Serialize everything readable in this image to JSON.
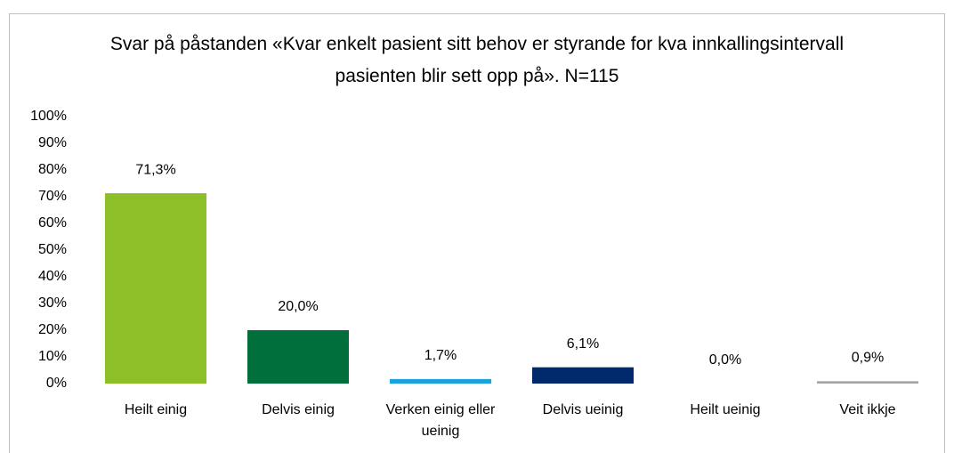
{
  "chart_data": {
    "type": "bar",
    "title": "Svar på påstanden «Kvar enkelt pasient sitt behov er styrande for kva innkallingsintervall pasienten blir sett opp på». N=115",
    "categories": [
      "Heilt einig",
      "Delvis einig",
      "Verken einig eller ueinig",
      "Delvis ueinig",
      "Heilt ueinig",
      "Veit ikkje"
    ],
    "values": [
      71.3,
      20.0,
      1.7,
      6.1,
      0.0,
      0.9
    ],
    "value_labels": [
      "71,3%",
      "20,0%",
      "1,7%",
      "6,1%",
      "0,0%",
      "0,9%"
    ],
    "colors": [
      "#8dc028",
      "#006f3c",
      "#1aa3dc",
      "#002a6c",
      "#7f7f7f",
      "#a6a6a6"
    ],
    "ylim": [
      0,
      100
    ],
    "yticks": [
      {
        "value": 0,
        "label": "0%"
      },
      {
        "value": 10,
        "label": "10%"
      },
      {
        "value": 20,
        "label": "20%"
      },
      {
        "value": 30,
        "label": "30%"
      },
      {
        "value": 40,
        "label": "40%"
      },
      {
        "value": 50,
        "label": "50%"
      },
      {
        "value": 60,
        "label": "60%"
      },
      {
        "value": 70,
        "label": "70%"
      },
      {
        "value": 80,
        "label": "80%"
      },
      {
        "value": 90,
        "label": "90%"
      },
      {
        "value": 100,
        "label": "100%"
      }
    ],
    "grid": false
  }
}
